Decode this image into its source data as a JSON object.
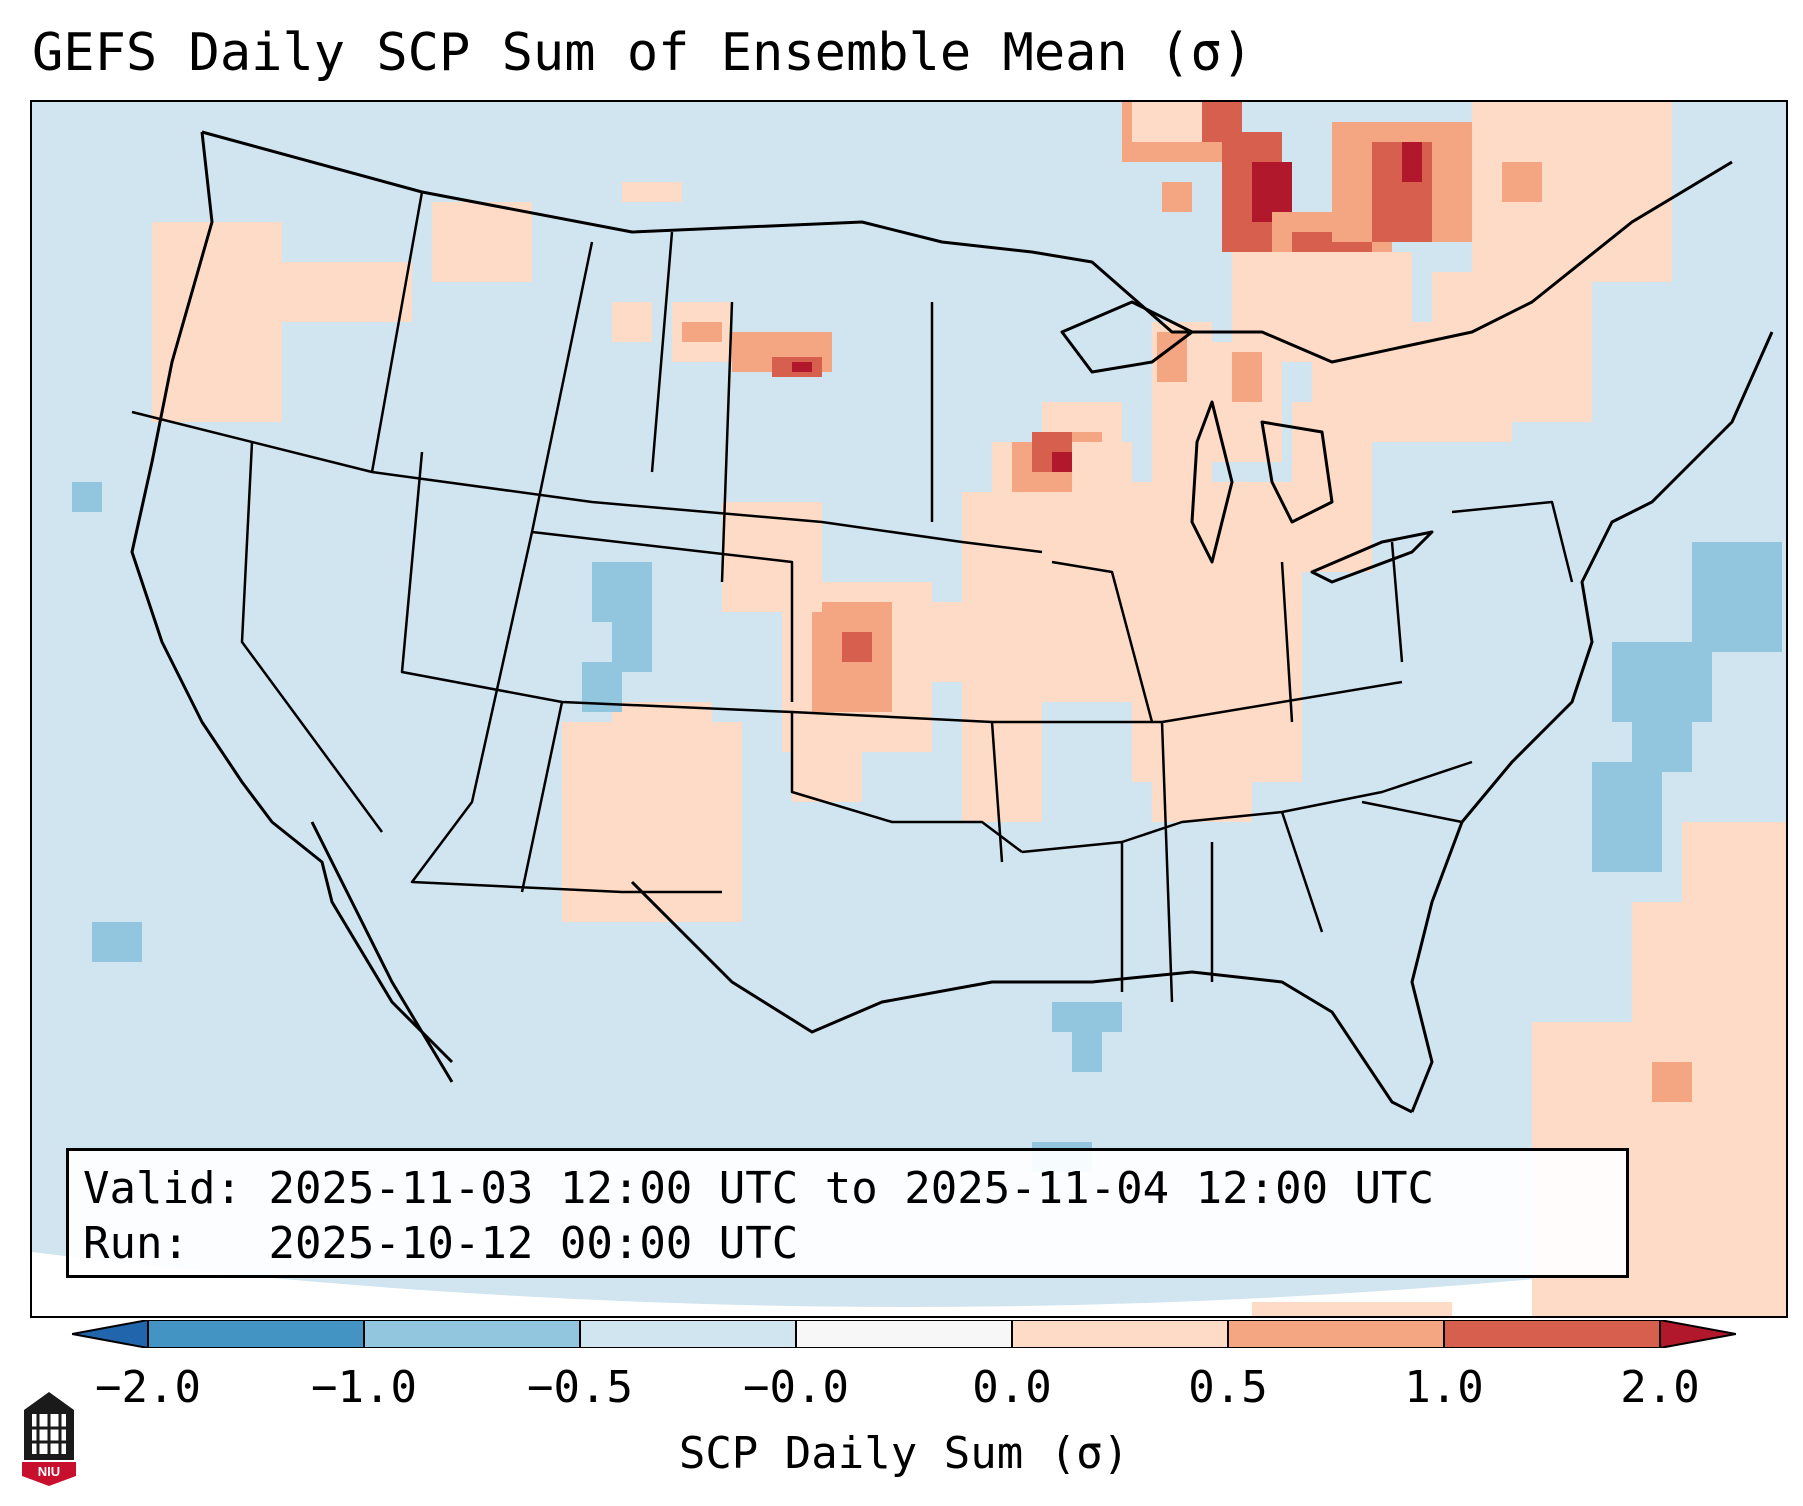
{
  "title": "GEFS Daily SCP Sum of Ensemble Mean (σ)",
  "info": {
    "valid_label": "Valid:",
    "valid_value": "2025-11-03 12:00 UTC to 2025-11-04 12:00 UTC",
    "run_label": "Run:",
    "run_value": "2025-10-12 00:00 UTC"
  },
  "colorbar": {
    "label": "SCP Daily Sum (σ)",
    "ticks": [
      "−2.0",
      "−1.0",
      "−0.5",
      "−0.0",
      "0.0",
      "0.5",
      "1.0",
      "2.0"
    ],
    "colors": [
      "#4393c3",
      "#92c5de",
      "#d1e5f0",
      "#f7f7f7",
      "#fddbc7",
      "#f4a582",
      "#d6604d"
    ],
    "under_color": "#2166ac",
    "over_color": "#b2182b"
  },
  "map": {
    "background_color": "#d1e5f0",
    "outline_color": "#000000"
  },
  "logo": {
    "text": "NIU",
    "color": "#c8102e"
  }
}
